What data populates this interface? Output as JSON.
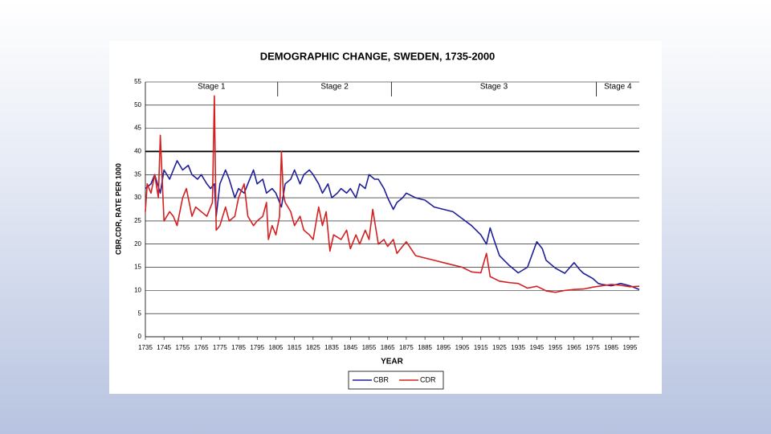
{
  "chart_data": {
    "type": "line",
    "title": "DEMOGRAPHIC CHANGE, SWEDEN, 1735-2000",
    "x_label": "YEAR",
    "y_label": "CBR,CDR, RATE PER 1000",
    "xlim": [
      1735,
      2000
    ],
    "ylim": [
      0,
      55
    ],
    "xticks": [
      1735,
      1745,
      1755,
      1765,
      1775,
      1785,
      1795,
      1805,
      1815,
      1825,
      1835,
      1845,
      1855,
      1865,
      1875,
      1885,
      1895,
      1905,
      1915,
      1925,
      1935,
      1945,
      1955,
      1965,
      1975,
      1985,
      1995
    ],
    "yticks": [
      0,
      5,
      10,
      15,
      20,
      25,
      30,
      35,
      40,
      45,
      50,
      55
    ],
    "grid": true,
    "hline": 40,
    "stages": [
      "Stage 1",
      "Stage 2",
      "Stage 3",
      "Stage 4"
    ],
    "stage_boundaries": [
      1806,
      1867,
      1977
    ],
    "legend": "bottom",
    "series": [
      {
        "name": "CBR",
        "color": "#1f1f99",
        "x": [
          1735,
          1738,
          1740,
          1743,
          1745,
          1748,
          1750,
          1752,
          1755,
          1758,
          1760,
          1763,
          1765,
          1768,
          1770,
          1772,
          1773,
          1775,
          1778,
          1780,
          1783,
          1785,
          1788,
          1790,
          1793,
          1795,
          1798,
          1800,
          1803,
          1805,
          1808,
          1810,
          1813,
          1815,
          1818,
          1820,
          1823,
          1825,
          1828,
          1830,
          1833,
          1835,
          1838,
          1840,
          1843,
          1845,
          1848,
          1850,
          1853,
          1855,
          1858,
          1860,
          1863,
          1865,
          1868,
          1870,
          1873,
          1875,
          1880,
          1885,
          1890,
          1895,
          1900,
          1905,
          1910,
          1915,
          1918,
          1920,
          1922,
          1925,
          1930,
          1935,
          1940,
          1945,
          1948,
          1950,
          1955,
          1960,
          1965,
          1968,
          1970,
          1975,
          1978,
          1980,
          1985,
          1990,
          1995,
          2000
        ],
        "values": [
          32,
          33,
          35,
          31,
          36,
          34,
          36,
          38,
          36,
          37,
          35,
          34,
          35,
          33,
          32,
          33,
          26,
          33,
          36,
          34,
          30,
          32,
          31,
          33,
          36,
          33,
          34,
          31,
          32,
          31,
          28,
          33,
          34,
          36,
          33,
          35,
          36,
          35,
          33,
          31,
          33,
          30,
          31,
          32,
          31,
          32,
          30,
          33,
          32,
          35,
          34,
          34,
          32,
          30,
          27.5,
          29,
          30,
          31,
          30,
          29.5,
          28,
          27.5,
          27,
          25.5,
          24,
          22,
          20,
          23.5,
          21,
          17.5,
          15.5,
          13.8,
          15,
          20.5,
          19,
          16.5,
          14.8,
          13.7,
          16,
          14.5,
          13.7,
          12.6,
          11.5,
          11.3,
          11.0,
          11.5,
          11.0,
          10.2
        ]
      },
      {
        "name": "CDR",
        "color": "#d42020",
        "x": [
          1735,
          1736,
          1738,
          1740,
          1742,
          1743,
          1745,
          1748,
          1750,
          1752,
          1755,
          1757,
          1760,
          1762,
          1765,
          1768,
          1771,
          1772,
          1773,
          1775,
          1778,
          1780,
          1783,
          1785,
          1788,
          1790,
          1793,
          1795,
          1798,
          1800,
          1801,
          1803,
          1805,
          1807,
          1808,
          1809,
          1810,
          1813,
          1815,
          1818,
          1820,
          1823,
          1825,
          1828,
          1830,
          1832,
          1834,
          1836,
          1840,
          1843,
          1845,
          1848,
          1850,
          1853,
          1855,
          1857,
          1860,
          1863,
          1865,
          1868,
          1870,
          1872,
          1875,
          1880,
          1885,
          1890,
          1895,
          1900,
          1905,
          1910,
          1915,
          1918,
          1920,
          1925,
          1930,
          1935,
          1940,
          1945,
          1950,
          1955,
          1960,
          1965,
          1970,
          1975,
          1980,
          1985,
          1990,
          1995,
          2000
        ],
        "values": [
          27,
          33,
          31,
          35,
          30,
          43.5,
          25,
          27,
          26,
          24,
          30,
          32,
          26,
          28,
          27,
          26,
          29,
          52,
          23,
          24,
          28,
          25,
          26,
          30,
          33,
          26,
          24,
          25,
          26,
          29,
          21,
          24,
          22,
          26,
          40,
          31,
          29,
          27,
          24,
          26,
          23,
          22,
          21,
          28,
          24,
          27,
          18.5,
          22,
          21,
          23,
          19,
          22,
          20,
          23,
          21,
          27.5,
          20,
          21,
          19.5,
          21,
          18,
          19,
          20.5,
          17.5,
          17,
          16.5,
          16,
          15.5,
          15,
          14,
          13.8,
          18,
          13,
          12,
          11.7,
          11.5,
          10.5,
          10.9,
          9.9,
          9.6,
          10.0,
          10.2,
          10.3,
          10.7,
          11.0,
          11.3,
          11.1,
          10.8,
          10.9
        ]
      }
    ]
  }
}
